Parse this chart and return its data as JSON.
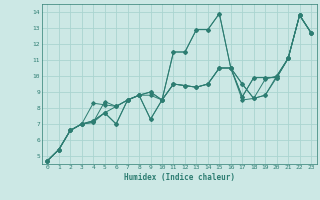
{
  "xlabel": "Humidex (Indice chaleur)",
  "bg_color": "#cce8e5",
  "grid_color": "#aad4d0",
  "line_color": "#2d7d72",
  "xlim": [
    -0.5,
    23.5
  ],
  "ylim": [
    4.5,
    14.5
  ],
  "xticks": [
    0,
    1,
    2,
    3,
    4,
    5,
    6,
    7,
    8,
    9,
    10,
    11,
    12,
    13,
    14,
    15,
    16,
    17,
    18,
    19,
    20,
    21,
    22,
    23
  ],
  "yticks": [
    5,
    6,
    7,
    8,
    9,
    10,
    11,
    12,
    13,
    14
  ],
  "series": [
    [
      4.7,
      5.4,
      6.6,
      7.0,
      7.1,
      8.4,
      8.1,
      8.5,
      8.8,
      9.0,
      8.5,
      11.5,
      11.5,
      12.9,
      12.9,
      13.9,
      10.5,
      8.7,
      9.9,
      9.9,
      9.9,
      11.1,
      13.8,
      12.7
    ],
    [
      4.7,
      5.4,
      6.6,
      7.0,
      7.2,
      7.7,
      7.0,
      8.5,
      8.8,
      7.3,
      8.5,
      9.5,
      9.4,
      9.3,
      9.5,
      10.5,
      10.5,
      9.5,
      8.6,
      8.8,
      10.0,
      11.1,
      13.8,
      12.7
    ],
    [
      4.7,
      5.4,
      6.6,
      7.0,
      7.2,
      7.7,
      7.0,
      8.5,
      8.8,
      7.3,
      8.5,
      9.5,
      9.4,
      9.3,
      9.5,
      10.5,
      10.5,
      9.5,
      8.6,
      9.8,
      10.0,
      11.1,
      13.8,
      12.7
    ],
    [
      4.7,
      5.4,
      6.6,
      7.0,
      8.3,
      8.2,
      8.1,
      8.5,
      8.8,
      9.0,
      8.5,
      11.5,
      11.5,
      12.9,
      12.9,
      13.9,
      10.5,
      8.7,
      9.9,
      9.9,
      9.9,
      11.1,
      13.8,
      12.7
    ],
    [
      4.7,
      5.4,
      6.6,
      7.0,
      7.1,
      7.7,
      8.1,
      8.5,
      8.8,
      8.8,
      8.5,
      9.5,
      9.4,
      9.3,
      9.5,
      10.5,
      10.5,
      8.5,
      8.6,
      8.8,
      9.9,
      11.1,
      13.8,
      12.7
    ]
  ]
}
